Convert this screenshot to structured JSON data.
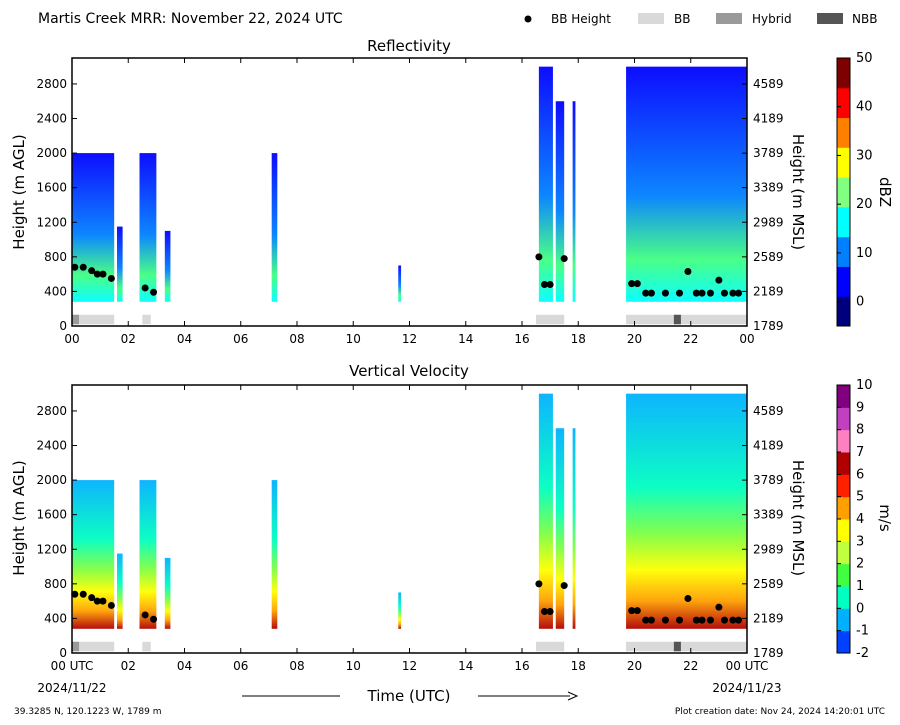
{
  "header": {
    "title": "Martis Creek MRR:  November 22, 2024 UTC",
    "legend": [
      {
        "label": "BB Height",
        "kind": "dot",
        "color": "#000000"
      },
      {
        "label": "BB",
        "kind": "bar",
        "color": "#d9d9d9"
      },
      {
        "label": "Hybrid",
        "kind": "bar",
        "color": "#9a9a9a"
      },
      {
        "label": "NBB",
        "kind": "bar",
        "color": "#555555"
      }
    ]
  },
  "footer": {
    "location": "39.3285 N, 120.1223 W, 1789 m",
    "creation": "Plot creation date: Nov 24, 2024 14:20:01 UTC",
    "xlabel": "Time (UTC)",
    "date_start": "2024/11/22",
    "date_end": "2024/11/23"
  },
  "chart_data": [
    {
      "type": "heatmap",
      "title": "Reflectivity",
      "ylabel": "Height (m AGL)",
      "ylabel_right": "Height (m MSL)",
      "colorbar_label": "dBZ",
      "colorbar_ticks": [
        "50",
        "40",
        "30",
        "20",
        "10",
        "0"
      ],
      "colorbar_range": [
        -5,
        50
      ],
      "colormap": [
        "#00007f",
        "#0000ff",
        "#0080ff",
        "#00ffff",
        "#80ff80",
        "#ffff00",
        "#ff8000",
        "#ff0000",
        "#7f0000"
      ],
      "x_tick_labels": [
        "00",
        "02",
        "04",
        "06",
        "08",
        "10",
        "12",
        "14",
        "16",
        "18",
        "20",
        "22",
        "00"
      ],
      "xlim_hours": [
        0,
        24
      ],
      "ylim": [
        0,
        3100
      ],
      "y_ticks": [
        0,
        400,
        800,
        1200,
        1600,
        2000,
        2400,
        2800
      ],
      "y_right_labels": [
        "1789",
        "2189",
        "2589",
        "2989",
        "3389",
        "3789",
        "4189",
        "4589"
      ],
      "echo_segments": [
        {
          "t0": 0.0,
          "t1": 1.5,
          "top": 2000
        },
        {
          "t0": 1.6,
          "t1": 1.8,
          "top": 1150
        },
        {
          "t0": 2.4,
          "t1": 3.0,
          "top": 2000
        },
        {
          "t0": 3.3,
          "t1": 3.5,
          "top": 1100
        },
        {
          "t0": 7.1,
          "t1": 7.3,
          "top": 2000
        },
        {
          "t0": 11.6,
          "t1": 11.7,
          "top": 700
        },
        {
          "t0": 16.6,
          "t1": 17.1,
          "top": 3000
        },
        {
          "t0": 17.2,
          "t1": 17.5,
          "top": 2600
        },
        {
          "t0": 17.8,
          "t1": 17.9,
          "top": 2600
        },
        {
          "t0": 19.7,
          "t1": 24.0,
          "top": 3000
        }
      ],
      "bb_height_points": [
        {
          "t": 0.1,
          "h": 680
        },
        {
          "t": 0.4,
          "h": 680
        },
        {
          "t": 0.7,
          "h": 640
        },
        {
          "t": 0.9,
          "h": 600
        },
        {
          "t": 1.1,
          "h": 600
        },
        {
          "t": 1.4,
          "h": 550
        },
        {
          "t": 2.6,
          "h": 440
        },
        {
          "t": 2.9,
          "h": 390
        },
        {
          "t": 16.6,
          "h": 800
        },
        {
          "t": 16.8,
          "h": 480
        },
        {
          "t": 17.0,
          "h": 480
        },
        {
          "t": 17.5,
          "h": 780
        },
        {
          "t": 19.9,
          "h": 490
        },
        {
          "t": 20.1,
          "h": 490
        },
        {
          "t": 20.4,
          "h": 380
        },
        {
          "t": 20.6,
          "h": 380
        },
        {
          "t": 21.1,
          "h": 380
        },
        {
          "t": 21.6,
          "h": 380
        },
        {
          "t": 21.9,
          "h": 630
        },
        {
          "t": 22.2,
          "h": 380
        },
        {
          "t": 22.4,
          "h": 380
        },
        {
          "t": 22.7,
          "h": 380
        },
        {
          "t": 23.0,
          "h": 530
        },
        {
          "t": 23.2,
          "h": 380
        },
        {
          "t": 23.5,
          "h": 380
        },
        {
          "t": 23.7,
          "h": 380
        }
      ],
      "bb_type_bars": [
        {
          "t0": 0.0,
          "t1": 1.5,
          "type": "BB"
        },
        {
          "t0": 0.0,
          "t1": 0.25,
          "type": "Hybrid"
        },
        {
          "t0": 2.5,
          "t1": 2.8,
          "type": "BB"
        },
        {
          "t0": 16.5,
          "t1": 17.5,
          "type": "BB"
        },
        {
          "t0": 19.7,
          "t1": 24.0,
          "type": "BB"
        },
        {
          "t0": 21.4,
          "t1": 21.65,
          "type": "NBB"
        }
      ]
    },
    {
      "type": "heatmap",
      "title": "Vertical Velocity",
      "ylabel": "Height (m AGL)",
      "ylabel_right": "Height (m MSL)",
      "colorbar_label": "m/s",
      "colorbar_ticks": [
        "10",
        "9",
        "8",
        "7",
        "6",
        "5",
        "4",
        "3",
        "2",
        "1",
        "0",
        "-1",
        "-2"
      ],
      "colorbar_range": [
        -2,
        10
      ],
      "colormap": [
        "#0040ff",
        "#00b0ff",
        "#00ffc0",
        "#40ff40",
        "#c0ff40",
        "#ffff00",
        "#ffa000",
        "#ff2000",
        "#b00000",
        "#ff80c0",
        "#c040c0",
        "#800080"
      ],
      "x_tick_labels": [
        "00 UTC",
        "02",
        "04",
        "06",
        "08",
        "10",
        "12",
        "14",
        "16",
        "18",
        "20",
        "22",
        "00 UTC"
      ],
      "xlim_hours": [
        0,
        24
      ],
      "ylim": [
        0,
        3100
      ],
      "y_ticks": [
        0,
        400,
        800,
        1200,
        1600,
        2000,
        2400,
        2800
      ],
      "y_right_labels": [
        "1789",
        "2189",
        "2589",
        "2989",
        "3389",
        "3789",
        "4189",
        "4589"
      ],
      "echo_segments": [
        {
          "t0": 0.0,
          "t1": 1.5,
          "top": 2000
        },
        {
          "t0": 1.6,
          "t1": 1.8,
          "top": 1150
        },
        {
          "t0": 2.4,
          "t1": 3.0,
          "top": 2000
        },
        {
          "t0": 3.3,
          "t1": 3.5,
          "top": 1100
        },
        {
          "t0": 7.1,
          "t1": 7.3,
          "top": 2000
        },
        {
          "t0": 11.6,
          "t1": 11.7,
          "top": 700
        },
        {
          "t0": 16.6,
          "t1": 17.1,
          "top": 3000
        },
        {
          "t0": 17.2,
          "t1": 17.5,
          "top": 2600
        },
        {
          "t0": 17.8,
          "t1": 17.9,
          "top": 2600
        },
        {
          "t0": 19.7,
          "t1": 24.0,
          "top": 3000
        }
      ],
      "bb_height_points": [
        {
          "t": 0.1,
          "h": 680
        },
        {
          "t": 0.4,
          "h": 680
        },
        {
          "t": 0.7,
          "h": 640
        },
        {
          "t": 0.9,
          "h": 600
        },
        {
          "t": 1.1,
          "h": 600
        },
        {
          "t": 1.4,
          "h": 550
        },
        {
          "t": 2.6,
          "h": 440
        },
        {
          "t": 2.9,
          "h": 390
        },
        {
          "t": 16.6,
          "h": 800
        },
        {
          "t": 16.8,
          "h": 480
        },
        {
          "t": 17.0,
          "h": 480
        },
        {
          "t": 17.5,
          "h": 780
        },
        {
          "t": 19.9,
          "h": 490
        },
        {
          "t": 20.1,
          "h": 490
        },
        {
          "t": 20.4,
          "h": 380
        },
        {
          "t": 20.6,
          "h": 380
        },
        {
          "t": 21.1,
          "h": 380
        },
        {
          "t": 21.6,
          "h": 380
        },
        {
          "t": 21.9,
          "h": 630
        },
        {
          "t": 22.2,
          "h": 380
        },
        {
          "t": 22.4,
          "h": 380
        },
        {
          "t": 22.7,
          "h": 380
        },
        {
          "t": 23.0,
          "h": 530
        },
        {
          "t": 23.2,
          "h": 380
        },
        {
          "t": 23.5,
          "h": 380
        },
        {
          "t": 23.7,
          "h": 380
        }
      ],
      "bb_type_bars": [
        {
          "t0": 0.0,
          "t1": 1.5,
          "type": "BB"
        },
        {
          "t0": 0.0,
          "t1": 0.25,
          "type": "Hybrid"
        },
        {
          "t0": 2.5,
          "t1": 2.8,
          "type": "BB"
        },
        {
          "t0": 16.5,
          "t1": 17.5,
          "type": "BB"
        },
        {
          "t0": 19.7,
          "t1": 24.0,
          "type": "BB"
        },
        {
          "t0": 21.4,
          "t1": 21.65,
          "type": "NBB"
        }
      ]
    }
  ]
}
